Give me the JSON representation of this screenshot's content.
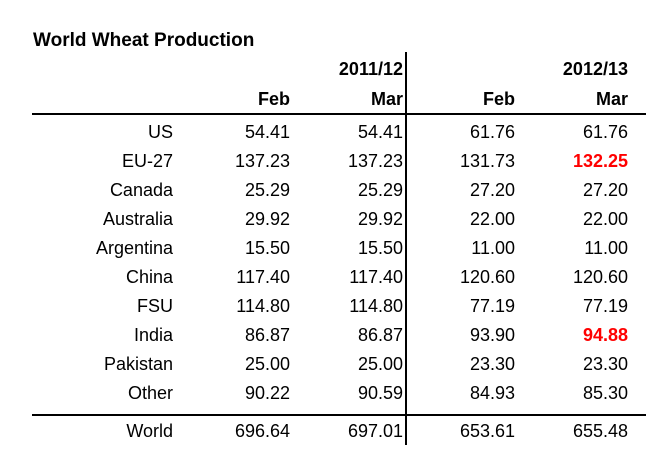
{
  "title": "World Wheat Production",
  "chart_data": {
    "type": "table",
    "title": "World Wheat Production",
    "units_note": "",
    "column_groups": [
      "2011/12",
      "2012/13"
    ],
    "columns": [
      "Feb",
      "Mar",
      "Feb",
      "Mar"
    ],
    "rows": [
      {
        "label": "US",
        "values": [
          "54.41",
          "54.41",
          "61.76",
          "61.76"
        ]
      },
      {
        "label": "EU-27",
        "values": [
          "137.23",
          "137.23",
          "131.73",
          "132.25"
        ]
      },
      {
        "label": "Canada",
        "values": [
          "25.29",
          "25.29",
          "27.20",
          "27.20"
        ]
      },
      {
        "label": "Australia",
        "values": [
          "29.92",
          "29.92",
          "22.00",
          "22.00"
        ]
      },
      {
        "label": "Argentina",
        "values": [
          "15.50",
          "15.50",
          "11.00",
          "11.00"
        ]
      },
      {
        "label": "China",
        "values": [
          "117.40",
          "117.40",
          "120.60",
          "120.60"
        ]
      },
      {
        "label": "FSU",
        "values": [
          "114.80",
          "114.80",
          "77.19",
          "77.19"
        ]
      },
      {
        "label": "India",
        "values": [
          "86.87",
          "86.87",
          "93.90",
          "94.88"
        ]
      },
      {
        "label": "Pakistan",
        "values": [
          "25.00",
          "25.00",
          "23.30",
          "23.30"
        ]
      },
      {
        "label": "Other",
        "values": [
          "90.22",
          "90.59",
          "84.93",
          "85.30"
        ]
      }
    ],
    "total_row": {
      "label": "World",
      "values": [
        "696.64",
        "697.01",
        "653.61",
        "655.48"
      ]
    },
    "text_color": "#000000",
    "highlight_color": "#FF0000",
    "highlighted_cells": [
      {
        "row": "EU-27",
        "column_group": "2012/13",
        "column": "Mar",
        "value": "132.25"
      },
      {
        "row": "India",
        "column_group": "2012/13",
        "column": "Mar",
        "value": "94.88"
      }
    ]
  }
}
